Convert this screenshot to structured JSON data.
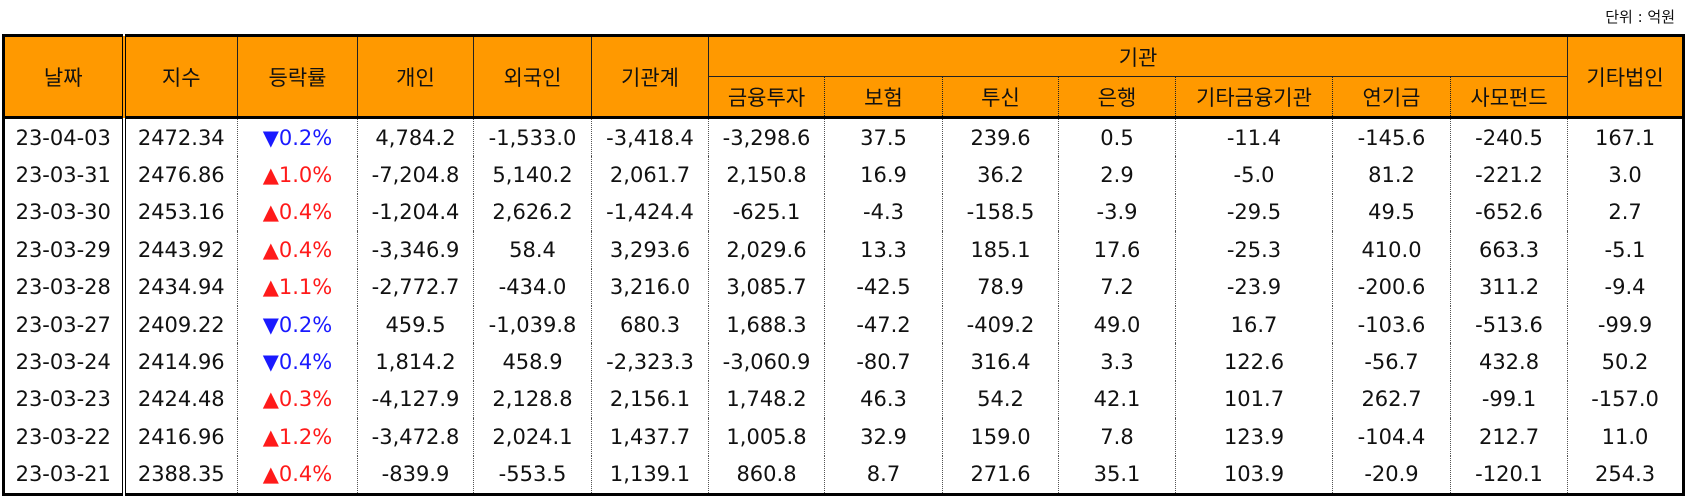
{
  "unit": "단위 : 억원",
  "table": {
    "header": {
      "top": [
        "날짜",
        "지수",
        "등락률",
        "개인",
        "외국인",
        "기관계",
        "기관",
        "기타법인"
      ],
      "sub": [
        "금융투자",
        "보험",
        "투신",
        "은행",
        "기타금융기관",
        "연기금",
        "사모펀드"
      ]
    },
    "rows": [
      [
        "23-04-03",
        "2472.34",
        {
          "arrow": "▼",
          "text": "0.2%",
          "color": "#1a1aff"
        },
        "4,784.2",
        "-1,533.0",
        "-3,418.4",
        "-3,298.6",
        "37.5",
        "239.6",
        "0.5",
        "-11.4",
        "-145.6",
        "-240.5",
        "167.1"
      ],
      [
        "23-03-31",
        "2476.86",
        {
          "arrow": "▲",
          "text": "1.0%",
          "color": "#ff1a1a"
        },
        "-7,204.8",
        "5,140.2",
        "2,061.7",
        "2,150.8",
        "16.9",
        "36.2",
        "2.9",
        "-5.0",
        "81.2",
        "-221.2",
        "3.0"
      ],
      [
        "23-03-30",
        "2453.16",
        {
          "arrow": "▲",
          "text": "0.4%",
          "color": "#ff1a1a"
        },
        "-1,204.4",
        "2,626.2",
        "-1,424.4",
        "-625.1",
        "-4.3",
        "-158.5",
        "-3.9",
        "-29.5",
        "49.5",
        "-652.6",
        "2.7"
      ],
      [
        "23-03-29",
        "2443.92",
        {
          "arrow": "▲",
          "text": "0.4%",
          "color": "#ff1a1a"
        },
        "-3,346.9",
        "58.4",
        "3,293.6",
        "2,029.6",
        "13.3",
        "185.1",
        "17.6",
        "-25.3",
        "410.0",
        "663.3",
        "-5.1"
      ],
      [
        "23-03-28",
        "2434.94",
        {
          "arrow": "▲",
          "text": "1.1%",
          "color": "#ff1a1a"
        },
        "-2,772.7",
        "-434.0",
        "3,216.0",
        "3,085.7",
        "-42.5",
        "78.9",
        "7.2",
        "-23.9",
        "-200.6",
        "311.2",
        "-9.4"
      ],
      [
        "23-03-27",
        "2409.22",
        {
          "arrow": "▼",
          "text": "0.2%",
          "color": "#1a1aff"
        },
        "459.5",
        "-1,039.8",
        "680.3",
        "1,688.3",
        "-47.2",
        "-409.2",
        "49.0",
        "16.7",
        "-103.6",
        "-513.6",
        "-99.9"
      ],
      [
        "23-03-24",
        "2414.96",
        {
          "arrow": "▼",
          "text": "0.4%",
          "color": "#1a1aff"
        },
        "1,814.2",
        "458.9",
        "-2,323.3",
        "-3,060.9",
        "-80.7",
        "316.4",
        "3.3",
        "122.6",
        "-56.7",
        "432.8",
        "50.2"
      ],
      [
        "23-03-23",
        "2424.48",
        {
          "arrow": "▲",
          "text": "0.3%",
          "color": "#ff1a1a"
        },
        "-4,127.9",
        "2,128.8",
        "2,156.1",
        "1,748.2",
        "46.3",
        "54.2",
        "42.1",
        "101.7",
        "262.7",
        "-99.1",
        "-157.0"
      ],
      [
        "23-03-22",
        "2416.96",
        {
          "arrow": "▲",
          "text": "1.2%",
          "color": "#ff1a1a"
        },
        "-3,472.8",
        "2,024.1",
        "1,437.7",
        "1,005.8",
        "32.9",
        "159.0",
        "7.8",
        "123.9",
        "-104.4",
        "212.7",
        "11.0"
      ],
      [
        "23-03-21",
        "2388.35",
        {
          "arrow": "▲",
          "text": "0.4%",
          "color": "#ff1a1a"
        },
        "-839.9",
        "-553.5",
        "1,139.1",
        "860.8",
        "8.7",
        "271.6",
        "35.1",
        "103.9",
        "-20.9",
        "-120.1",
        "254.3"
      ]
    ]
  }
}
